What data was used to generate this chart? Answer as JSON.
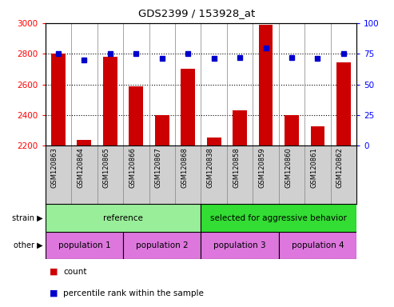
{
  "title": "GDS2399 / 153928_at",
  "samples": [
    "GSM120863",
    "GSM120864",
    "GSM120865",
    "GSM120866",
    "GSM120867",
    "GSM120868",
    "GSM120838",
    "GSM120858",
    "GSM120859",
    "GSM120860",
    "GSM120861",
    "GSM120862"
  ],
  "counts": [
    2800,
    2240,
    2780,
    2590,
    2400,
    2700,
    2255,
    2430,
    2990,
    2400,
    2325,
    2745
  ],
  "percentiles": [
    75,
    70,
    75,
    75,
    71,
    75,
    71,
    72,
    80,
    72,
    71,
    75
  ],
  "ymin": 2200,
  "ymax": 3000,
  "yticks": [
    2200,
    2400,
    2600,
    2800,
    3000
  ],
  "y2min": 0,
  "y2max": 100,
  "y2ticks": [
    0,
    25,
    50,
    75,
    100
  ],
  "dotted_lines": [
    2800,
    2600,
    2400
  ],
  "bar_color": "#cc0000",
  "dot_color": "#0000cc",
  "xtick_bg": "#d0d0d0",
  "strain_groups": [
    {
      "label": "reference",
      "start": 0,
      "end": 6,
      "color": "#99ee99"
    },
    {
      "label": "selected for aggressive behavior",
      "start": 6,
      "end": 12,
      "color": "#33dd33"
    }
  ],
  "other_groups": [
    {
      "label": "population 1",
      "start": 0,
      "end": 3,
      "color": "#dd77dd"
    },
    {
      "label": "population 2",
      "start": 3,
      "end": 6,
      "color": "#dd77dd"
    },
    {
      "label": "population 3",
      "start": 6,
      "end": 9,
      "color": "#dd77dd"
    },
    {
      "label": "population 4",
      "start": 9,
      "end": 12,
      "color": "#dd77dd"
    }
  ],
  "legend_count_label": "count",
  "legend_pct_label": "percentile rank within the sample",
  "strain_label": "strain",
  "other_label": "other",
  "bar_width": 0.55
}
